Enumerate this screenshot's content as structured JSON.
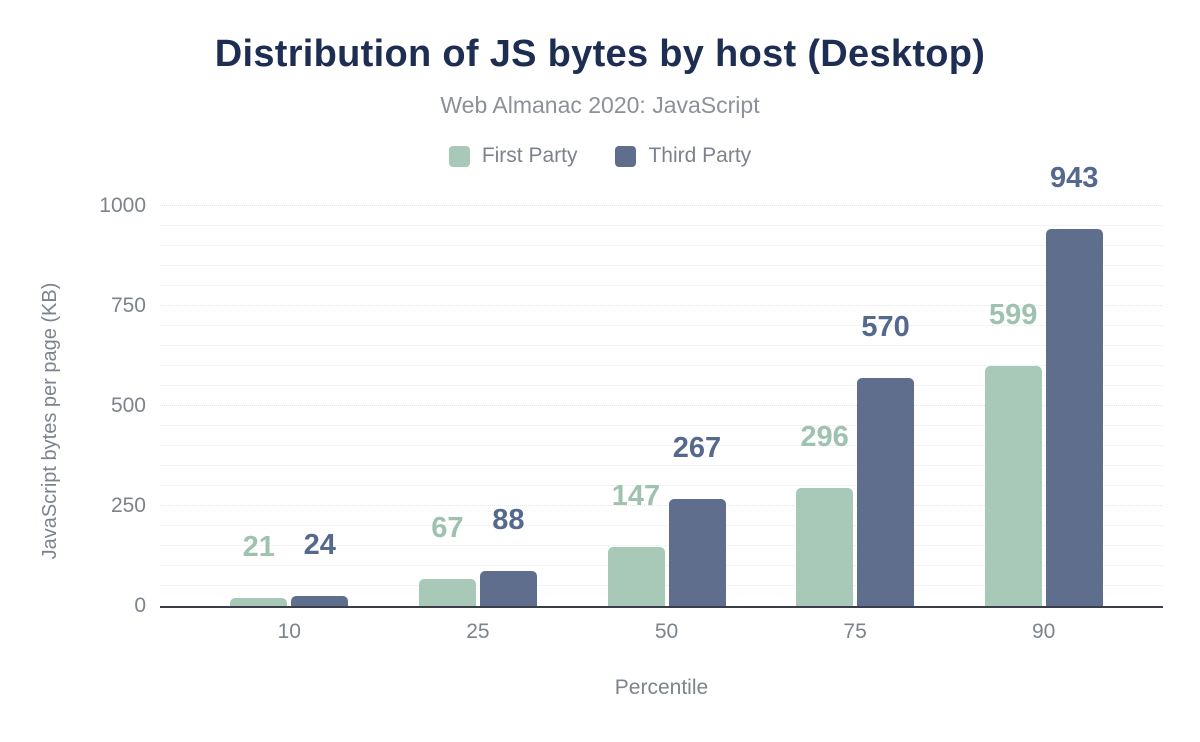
{
  "figure": {
    "title": "Distribution of JS bytes by host (Desktop)",
    "subtitle": "Web Almanac 2020: JavaScript"
  },
  "colors": {
    "background": "#ffffff",
    "title_text": "#1d2e52",
    "subtitle_text": "#8b909a",
    "axis_text": "#7d838d",
    "axis_line": "#393e49",
    "grid_minor": "#f4f4f6",
    "grid_major": "#e3e4e8",
    "first_party": "#a9c9b8",
    "first_party_label": "#9fc2af",
    "third_party": "#5e6e8c",
    "third_party_label": "#55688e"
  },
  "chart_data": {
    "type": "bar",
    "title": "Distribution of JS bytes by host (Desktop)",
    "subtitle": "Web Almanac 2020: JavaScript",
    "categories": [
      "10",
      "25",
      "50",
      "75",
      "90"
    ],
    "series": [
      {
        "name": "First Party",
        "color": "#a9c9b8",
        "label_color": "#9fc2af",
        "values": [
          21,
          67,
          147,
          296,
          599
        ]
      },
      {
        "name": "Third Party",
        "color": "#5e6e8c",
        "label_color": "#55688e",
        "values": [
          24,
          88,
          267,
          570,
          943
        ]
      }
    ],
    "xlabel": "Percentile",
    "ylabel": "JavaScript bytes per page (KB)",
    "ylim": [
      0,
      1000
    ],
    "yticks": [
      0,
      250,
      500,
      750,
      1000
    ],
    "minor_grid_step": 50,
    "grid": true,
    "legend_position": "top",
    "data_labels": true
  }
}
